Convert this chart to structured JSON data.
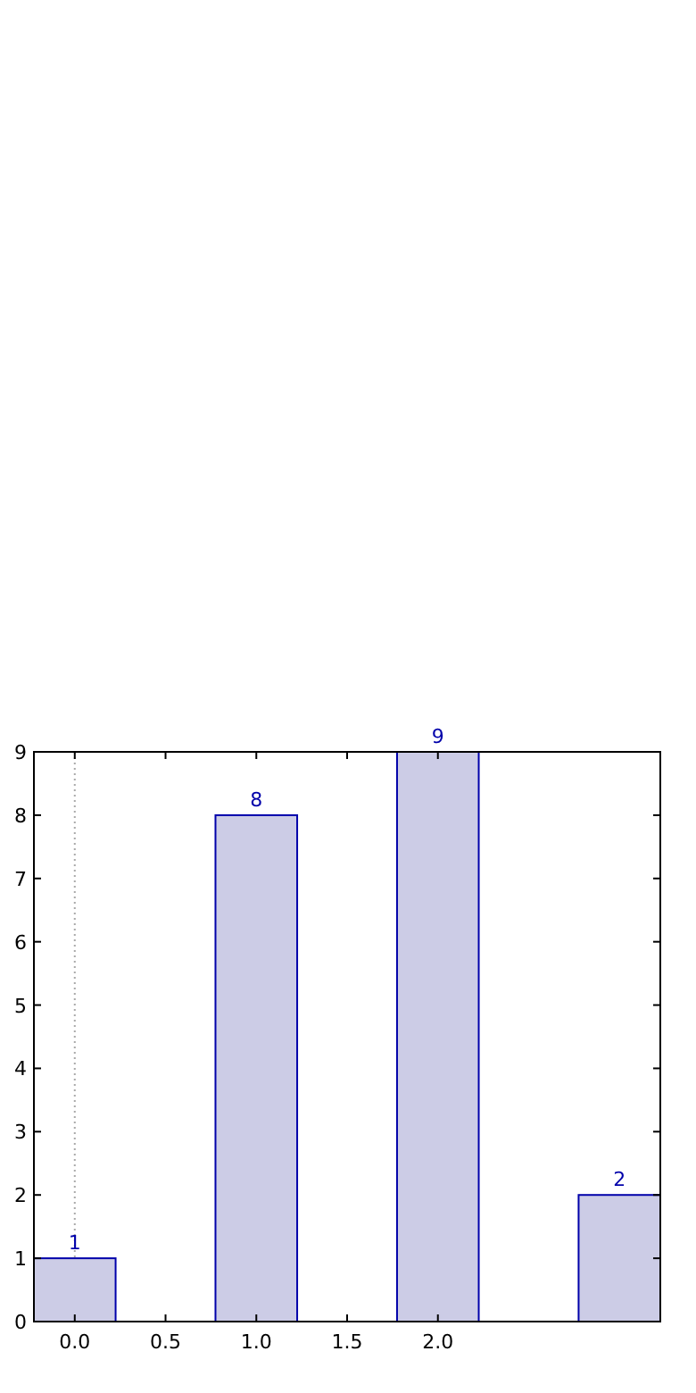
{
  "chart_data": {
    "type": "bar",
    "x": [
      0,
      1,
      2,
      3
    ],
    "values": [
      1,
      8,
      9,
      2
    ],
    "color": "#ccccE6",
    "data_labels": true,
    "xlim": [
      -0.225,
      3.225
    ],
    "xticks": [
      {
        "value": 0,
        "label": "0.0"
      },
      {
        "value": 0.5,
        "label": "0.5"
      },
      {
        "value": 1,
        "label": "1.0"
      },
      {
        "value": 1.5,
        "label": "1.5"
      },
      {
        "value": 2,
        "label": "2.0"
      }
    ],
    "ylim": [
      0,
      9
    ],
    "yticks": [
      0,
      1,
      2,
      3,
      4,
      5,
      6,
      7,
      8,
      9
    ],
    "ref_lines": [
      {
        "axis": "x",
        "value": 0,
        "color": "#aaaaaa",
        "line_style": "dotted"
      }
    ]
  }
}
